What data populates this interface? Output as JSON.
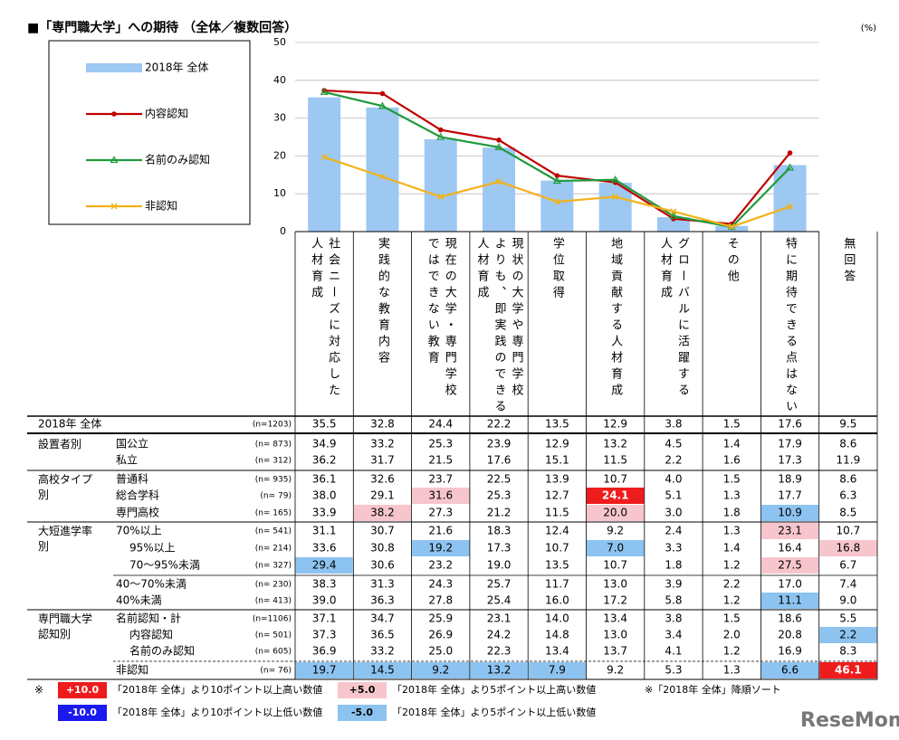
{
  "chart_data": {
    "type": "bar",
    "title": "■「専門職大学」への期待 （全体／複数回答）",
    "unit_label": "(%)",
    "categories": [
      "社会ニーズに対応した\n人材育成",
      "実践的な教育内容",
      "現在の大学・専門学校\nではできない教育",
      "現状の大学や専門学校\nよりも、即実践のできる\n人材育成",
      "学位取得",
      "地域貢献する人材育成",
      "グローバルに活躍する\n人材育成",
      "その他",
      "特に期待できる点はない",
      "無回答"
    ],
    "ylim": [
      0,
      50
    ],
    "yticks": [
      0,
      10,
      20,
      30,
      40,
      50
    ],
    "grid": true,
    "series": [
      {
        "name": "2018年 全体",
        "type": "bar",
        "color": "#9dc8f2",
        "values": [
          35.5,
          32.8,
          24.4,
          22.2,
          13.5,
          12.9,
          3.8,
          1.5,
          17.6,
          null
        ]
      },
      {
        "name": "内容認知",
        "type": "line",
        "marker": "circle",
        "color": "#c00000",
        "values": [
          37.3,
          36.5,
          26.9,
          24.2,
          14.8,
          13.0,
          3.4,
          2.0,
          20.8,
          null
        ]
      },
      {
        "name": "名前のみ認知",
        "type": "line",
        "marker": "triangle",
        "color": "#1f9a3c",
        "values": [
          36.9,
          33.2,
          25.0,
          22.3,
          13.4,
          13.7,
          4.1,
          1.2,
          16.9,
          null
        ]
      },
      {
        "name": "非認知",
        "type": "line",
        "marker": "cross",
        "color": "#f2b21b",
        "values": [
          19.7,
          14.5,
          9.2,
          13.2,
          7.9,
          9.2,
          5.3,
          1.3,
          6.6,
          null
        ]
      }
    ]
  },
  "table": {
    "total": {
      "label": "2018年 全体",
      "n": "(n=1203)",
      "values": [
        "35.5",
        "32.8",
        "24.4",
        "22.2",
        "13.5",
        "12.9",
        "3.8",
        "1.5",
        "17.6",
        "9.5"
      ]
    },
    "groups": [
      {
        "label": "設置者別",
        "rows": [
          {
            "label": "国公立",
            "n": "(n= 873)",
            "values": [
              "34.9",
              "33.2",
              "25.3",
              "23.9",
              "12.9",
              "13.2",
              "4.5",
              "1.4",
              "17.9",
              "8.6"
            ]
          },
          {
            "label": "私立",
            "n": "(n= 312)",
            "values": [
              "36.2",
              "31.7",
              "21.5",
              "17.6",
              "15.1",
              "11.5",
              "2.2",
              "1.6",
              "17.3",
              "11.9"
            ]
          }
        ]
      },
      {
        "label": "高校タイプ\n別",
        "rows": [
          {
            "label": "普通科",
            "n": "(n= 935)",
            "values": [
              "36.1",
              "32.6",
              "23.7",
              "22.5",
              "13.9",
              "10.7",
              "4.0",
              "1.5",
              "18.9",
              "8.6"
            ]
          },
          {
            "label": "総合学科",
            "n": "(n= 79)",
            "values": [
              "38.0",
              "29.1",
              "31.6",
              "25.3",
              "12.7",
              "24.1",
              "5.1",
              "1.3",
              "17.7",
              "6.3"
            ],
            "cell_colors": [
              null,
              null,
              "#f6c6cc",
              null,
              null,
              "#ee1c1c",
              null,
              null,
              null,
              null
            ]
          },
          {
            "label": "専門高校",
            "n": "(n= 165)",
            "values": [
              "33.9",
              "38.2",
              "27.3",
              "21.2",
              "11.5",
              "20.0",
              "3.0",
              "1.8",
              "10.9",
              "8.5"
            ],
            "cell_colors": [
              null,
              "#f6c6cc",
              null,
              null,
              null,
              "#f6c6cc",
              null,
              null,
              "#8dc3f0",
              null
            ]
          }
        ]
      },
      {
        "label": "大短進学率\n別",
        "rows": [
          {
            "label": "70%以上",
            "n": "(n= 541)",
            "values": [
              "31.1",
              "30.7",
              "21.6",
              "18.3",
              "12.4",
              "9.2",
              "2.4",
              "1.3",
              "23.1",
              "10.7"
            ],
            "cell_colors": [
              null,
              null,
              null,
              null,
              null,
              null,
              null,
              null,
              "#f6c6cc",
              null
            ]
          },
          {
            "label": "95%以上",
            "n": "(n= 214)",
            "values": [
              "33.6",
              "30.8",
              "19.2",
              "17.3",
              "10.7",
              "7.0",
              "3.3",
              "1.4",
              "16.4",
              "16.8"
            ],
            "cell_colors": [
              null,
              null,
              "#8dc3f0",
              null,
              null,
              "#8dc3f0",
              null,
              null,
              null,
              "#f6c6cc"
            ]
          },
          {
            "label": "70～95%未満",
            "n": "(n= 327)",
            "values": [
              "29.4",
              "30.6",
              "23.2",
              "19.0",
              "13.5",
              "10.7",
              "1.8",
              "1.2",
              "27.5",
              "6.7"
            ],
            "cell_colors": [
              "#8dc3f0",
              null,
              null,
              null,
              null,
              null,
              null,
              null,
              "#f6c6cc",
              null
            ]
          },
          {
            "label": "40～70%未満",
            "n": "(n= 230)",
            "values": [
              "38.3",
              "31.3",
              "24.3",
              "25.7",
              "11.7",
              "13.0",
              "3.9",
              "2.2",
              "17.0",
              "7.4"
            ]
          },
          {
            "label": "40%未満",
            "n": "(n= 413)",
            "values": [
              "39.0",
              "36.3",
              "27.8",
              "25.4",
              "16.0",
              "17.2",
              "5.8",
              "1.2",
              "11.1",
              "9.0"
            ],
            "cell_colors": [
              null,
              null,
              null,
              null,
              null,
              null,
              null,
              null,
              "#8dc3f0",
              null
            ]
          }
        ]
      },
      {
        "label": "専門職大学\n認知別",
        "rows": [
          {
            "label": "名前認知・計",
            "n": "(n=1106)",
            "values": [
              "37.1",
              "34.7",
              "25.9",
              "23.1",
              "14.0",
              "13.4",
              "3.8",
              "1.5",
              "18.6",
              "5.5"
            ]
          },
          {
            "label": "内容認知",
            "n": "(n= 501)",
            "values": [
              "37.3",
              "36.5",
              "26.9",
              "24.2",
              "14.8",
              "13.0",
              "3.4",
              "2.0",
              "20.8",
              "2.2"
            ],
            "cell_colors": [
              null,
              null,
              null,
              null,
              null,
              null,
              null,
              null,
              null,
              "#8dc3f0"
            ]
          },
          {
            "label": "名前のみ認知",
            "n": "(n= 605)",
            "values": [
              "36.9",
              "33.2",
              "25.0",
              "22.3",
              "13.4",
              "13.7",
              "4.1",
              "1.2",
              "16.9",
              "8.3"
            ]
          },
          {
            "label": "非認知",
            "n": "(n= 76)",
            "values": [
              "19.7",
              "14.5",
              "9.2",
              "13.2",
              "7.9",
              "9.2",
              "5.3",
              "1.3",
              "6.6",
              "46.1"
            ],
            "cell_colors": [
              "#8dc3f0",
              "#8dc3f0",
              "#8dc3f0",
              "#8dc3f0",
              "#8dc3f0",
              null,
              null,
              null,
              "#8dc3f0",
              "#ee1c1c"
            ]
          }
        ]
      }
    ]
  },
  "notes": {
    "mark": "※",
    "items": [
      {
        "box": "+10.0",
        "text": "「2018年 全体」より10ポイント以上高い数値",
        "color": "#ee1c1c",
        "text_color": "#ffffff"
      },
      {
        "box": "+5.0",
        "text": "「2018年 全体」より5ポイント以上高い数値",
        "color": "#f6c6cc",
        "text_color": "#000000"
      },
      {
        "box": "-10.0",
        "text": "「2018年 全体」より10ポイント以上低い数値",
        "color": "#1a1aee",
        "text_color": "#ffffff"
      },
      {
        "box": "-5.0",
        "text": "「2018年 全体」より5ポイント以上低い数値",
        "color": "#8dc3f0",
        "text_color": "#000000"
      }
    ],
    "sort_note": "※「2018年 全体」降順ソート"
  },
  "watermark": "ReseMom"
}
